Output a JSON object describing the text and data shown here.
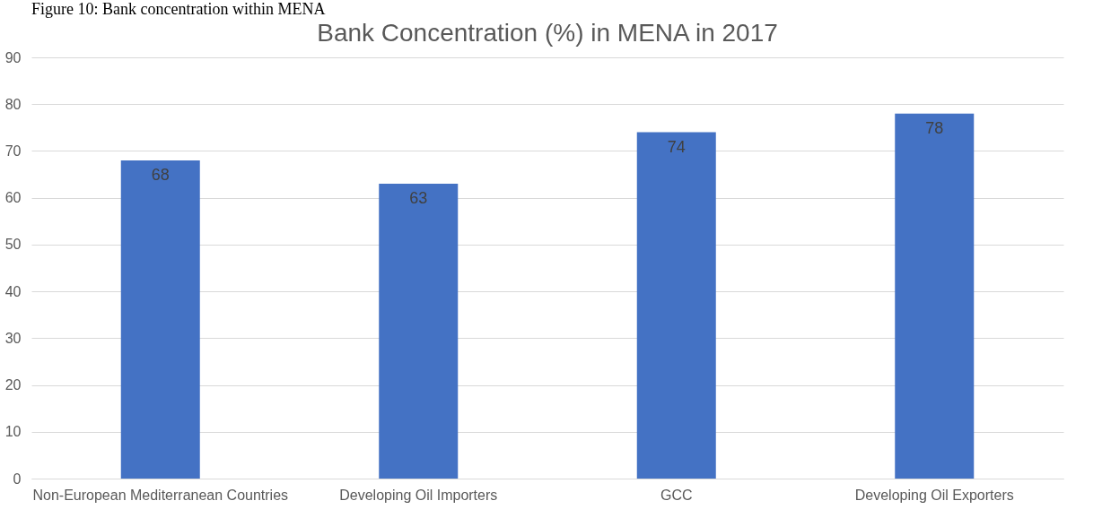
{
  "chart_data": {
    "type": "bar",
    "title": "Bank Concentration (%) in MENA in 2017",
    "categories": [
      "Non-European Mediterranean Countries",
      "Developing Oil Importers",
      "GCC",
      "Developing Oil Exporters"
    ],
    "values": [
      68,
      63,
      74,
      78
    ],
    "color": "#4472c4",
    "ylim": [
      0,
      90
    ],
    "yticks": [
      0,
      10,
      20,
      30,
      40,
      50,
      60,
      70,
      80,
      90
    ],
    "grid": "y",
    "data_labels": true,
    "annotations": [
      "Figure 10: Bank concentration within MENA"
    ]
  }
}
